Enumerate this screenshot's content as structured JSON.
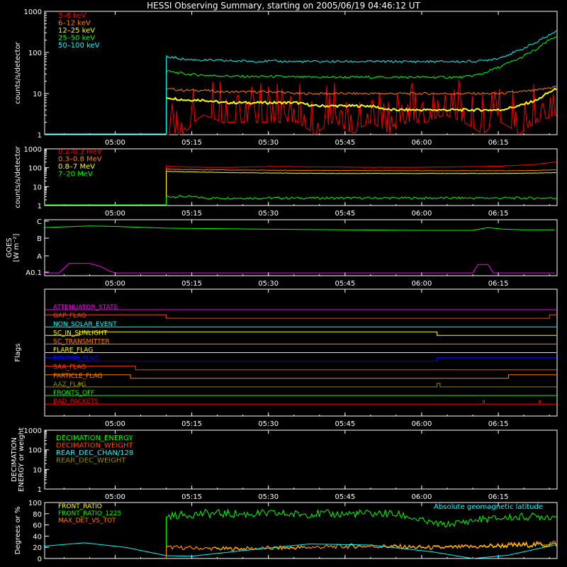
{
  "title": "HESSI Observing Summary, starting on 2005/06/19 04:46:12 UT",
  "time_ticks": [
    "05:00",
    "05:15",
    "05:30",
    "05:45",
    "06:00",
    "06:15"
  ],
  "colors": {
    "red": "#ff0000",
    "orange": "#ff7f00",
    "yellow": "#ffff00",
    "green": "#00ff00",
    "cyan": "#00ffff",
    "magenta": "#ff00ff",
    "blue": "#0000ff",
    "brown": "#8b6914",
    "olive": "#8b8b00",
    "orangered": "#ff4500",
    "tick": "#ffffff"
  },
  "chart_data": [
    {
      "type": "line",
      "id": "rates",
      "ylabel": "counts/s/detector",
      "yscale": "log",
      "ylim": [
        1,
        1000
      ],
      "yticks": [
        "1",
        "10",
        "100",
        "1000"
      ],
      "legend_position": "top-left",
      "x_start": "05:10",
      "x_end": "06:26",
      "series": [
        {
          "name": "3–6 keV",
          "color": "#ff0000",
          "values": [
            1,
            1,
            3,
            2,
            2,
            2,
            2,
            2,
            1,
            2,
            1,
            2,
            1,
            2,
            2,
            3,
            2,
            1,
            2,
            1,
            2,
            3
          ]
        },
        {
          "name": "6–12 keV",
          "color": "#ff7f00",
          "values": [
            13,
            12,
            12,
            11,
            11,
            11,
            11,
            10,
            10,
            10,
            10,
            10,
            10,
            10,
            10,
            10,
            10,
            10,
            10,
            11,
            12,
            15
          ]
        },
        {
          "name": "12–25 keV",
          "color": "#ffff00",
          "values": [
            8,
            7,
            7,
            6,
            6,
            6,
            6,
            6,
            5,
            5,
            5,
            5,
            4,
            4,
            4,
            4,
            4,
            4,
            4,
            5,
            7,
            13
          ]
        },
        {
          "name": "25–50 keV",
          "color": "#00ff00",
          "values": [
            35,
            30,
            28,
            27,
            26,
            26,
            26,
            25,
            25,
            25,
            25,
            25,
            25,
            25,
            25,
            25,
            25,
            30,
            45,
            70,
            120,
            250
          ]
        },
        {
          "name": "50–100 keV",
          "color": "#00ffff",
          "values": [
            80,
            68,
            65,
            63,
            62,
            61,
            61,
            60,
            60,
            60,
            60,
            60,
            60,
            60,
            60,
            60,
            60,
            62,
            75,
            110,
            180,
            320
          ]
        }
      ]
    },
    {
      "type": "line",
      "id": "high_energy",
      "ylabel": "counts/s/detector",
      "yscale": "log",
      "ylim": [
        1,
        1000
      ],
      "yticks": [
        "1",
        "10",
        "100",
        "1000"
      ],
      "legend_position": "top-left",
      "x_start": "05:10",
      "x_end": "06:26",
      "series": [
        {
          "name": "0.1–0.3 MeV",
          "color": "#ff0000",
          "values": [
            120,
            110,
            105,
            105,
            110,
            115,
            115,
            110,
            110,
            108,
            105,
            105,
            105,
            108,
            110,
            115,
            120,
            130,
            150,
            200
          ]
        },
        {
          "name": "0.3–0.8 MeV",
          "color": "#ff7f00",
          "values": [
            85,
            80,
            78,
            76,
            75,
            74,
            73,
            72,
            72,
            72,
            71,
            70,
            70,
            70,
            70,
            70,
            70,
            70,
            72,
            78
          ]
        },
        {
          "name": "0.8–7 MeV",
          "color": "#ffff00",
          "values": [
            65,
            60,
            58,
            55,
            54,
            53,
            52,
            51,
            50,
            50,
            50,
            50,
            50,
            50,
            50,
            50,
            50,
            51,
            52,
            55
          ]
        },
        {
          "name": "7–20 MeV",
          "color": "#00ff00",
          "values": [
            3,
            3,
            2.5,
            2.5,
            2.5,
            2.5,
            2.5,
            2.5,
            2.5,
            2.5,
            2.5,
            2.5,
            2.5,
            2.5,
            2.5,
            2.5,
            2.5,
            2.5,
            2.5,
            2.5
          ]
        }
      ]
    },
    {
      "type": "line",
      "id": "goes",
      "ylabel": "GOES",
      "ylabel_unit": "[W m⁻²]",
      "yticks": [
        "A0.1",
        "A",
        "B",
        "C"
      ],
      "series": [
        {
          "color": "#00ff00",
          "x": [
            "04:46",
            "04:55",
            "05:00",
            "05:10",
            "05:20",
            "05:30",
            "05:45",
            "06:00",
            "06:10",
            "06:13",
            "06:16",
            "06:20",
            "06:26"
          ],
          "values": [
            0.86,
            0.89,
            0.88,
            0.85,
            0.84,
            0.83,
            0.82,
            0.81,
            0.81,
            0.86,
            0.83,
            0.82,
            0.82
          ]
        },
        {
          "color": "#ff00ff",
          "x": [
            "04:46",
            "04:49",
            "04:51",
            "04:55",
            "04:57",
            "04:59",
            "05:00",
            "06:10",
            "06:11",
            "06:13",
            "06:14",
            "06:26"
          ],
          "values": [
            0.05,
            0.05,
            0.22,
            0.22,
            0.17,
            0.08,
            0.05,
            0.05,
            0.2,
            0.2,
            0.05,
            0.05
          ]
        }
      ]
    },
    {
      "type": "line",
      "id": "flags",
      "ylabel": "Flags",
      "series": [
        {
          "name": "ATTENUATOR_STATE",
          "color": "#ff00ff",
          "steps": [
            [
              "04:46",
              0
            ]
          ]
        },
        {
          "name": "GAP_FLAG",
          "color": "#ff4500",
          "steps": [
            [
              "04:46",
              1
            ],
            [
              "05:10",
              0
            ],
            [
              "06:25",
              1
            ]
          ]
        },
        {
          "name": "NON_SOLAR_EVENT",
          "color": "#00ffff",
          "steps": [
            [
              "04:46",
              0
            ]
          ]
        },
        {
          "name": "SC_IN_SUNLIGHT",
          "color": "#ffff00",
          "steps": [
            [
              "04:46",
              0
            ],
            [
              "04:53",
              1
            ],
            [
              "06:03",
              0
            ]
          ]
        },
        {
          "name": "SC_TRANSMITTER",
          "color": "#ff7f00",
          "steps": [
            [
              "04:46",
              0
            ]
          ]
        },
        {
          "name": "FLARE_FLAG",
          "color": "#ffff00",
          "steps": [
            [
              "04:46",
              0
            ]
          ]
        },
        {
          "name": "ECLIPSE_FLAG",
          "color": "#0000ff",
          "steps": [
            [
              "04:46",
              1
            ],
            [
              "04:53",
              0
            ],
            [
              "06:03",
              1
            ]
          ]
        },
        {
          "name": "SAA_FLAG",
          "color": "#ff4500",
          "steps": [
            [
              "04:46",
              1
            ],
            [
              "05:04",
              0
            ]
          ]
        },
        {
          "name": "PARTICLE_FLAG",
          "color": "#ff7f00",
          "steps": [
            [
              "04:46",
              1
            ],
            [
              "05:03",
              0
            ],
            [
              "06:17",
              1
            ]
          ]
        },
        {
          "name": "AAZ_FLAG",
          "color": "#8b8b00",
          "steps": [
            [
              "04:46",
              0
            ],
            [
              "04:53",
              1
            ],
            [
              "04:53.6",
              0
            ],
            [
              "06:03",
              1
            ],
            [
              "06:03.6",
              0
            ]
          ]
        },
        {
          "name": "FRONTS_OFF",
          "color": "#00ff00",
          "steps": [
            [
              "04:46",
              0
            ]
          ]
        },
        {
          "name": "BAD_PACKETS",
          "color": "#ff0000",
          "steps": [
            [
              "04:46",
              0
            ],
            [
              "06:12",
              1
            ],
            [
              "06:12.3",
              0
            ],
            [
              "06:23",
              1
            ],
            [
              "06:23.3",
              0
            ]
          ]
        }
      ]
    },
    {
      "type": "line",
      "id": "decimation",
      "ylabel": "DECIMATION\nENERGY or weight",
      "yscale": "log",
      "ylim": [
        1,
        1000
      ],
      "yticks": [
        "1",
        "10",
        "100",
        "1000"
      ],
      "series": [
        {
          "name": "DECIMATION_ENERGY",
          "color": "#00ff00",
          "values": []
        },
        {
          "name": "DECIMATION_WEIGHT",
          "color": "#ff4500",
          "values": []
        },
        {
          "name": "REAR_DEC_CHAN/128",
          "color": "#00ffff",
          "values": []
        },
        {
          "name": "REAR_DEC_WEIGHT",
          "color": "#8b8b00",
          "values": []
        }
      ]
    },
    {
      "type": "line",
      "id": "ratios",
      "ylabel": "Degrees or %",
      "ylim": [
        0,
        100
      ],
      "yticks": [
        "0",
        "20",
        "40",
        "60",
        "80",
        "100"
      ],
      "annotation": "Absolute geomagnetic latitude",
      "series": [
        {
          "name": "FRONT_RATIO",
          "color": "#ffff00",
          "x_start": "05:10",
          "values": [
            20,
            19,
            18,
            17,
            17,
            18,
            18,
            19,
            20,
            21,
            22,
            22,
            21,
            20,
            19,
            19,
            20,
            21,
            22,
            23,
            24,
            25
          ]
        },
        {
          "name": "FRONT_RATIO_1225",
          "color": "#00ff00",
          "x_start": "05:10",
          "values": [
            75,
            78,
            80,
            80,
            79,
            80,
            80,
            79,
            80,
            79,
            80,
            80,
            80,
            75,
            65,
            60,
            65,
            70,
            72,
            74,
            75,
            75
          ]
        },
        {
          "name": "MAX_DET_VS_TOT",
          "color": "#ff7f00",
          "x_start": "05:10",
          "values": [
            20,
            19,
            18,
            18,
            18,
            18,
            19,
            20,
            20,
            21,
            21,
            22,
            22,
            21,
            20,
            20,
            21,
            22,
            24,
            25,
            26,
            28
          ]
        },
        {
          "name": "Absolute geomagnetic latitude",
          "color": "#00ffff",
          "x": [
            "04:46",
            "04:54",
            "05:02",
            "05:10",
            "05:15",
            "05:25",
            "05:38",
            "05:50",
            "06:02",
            "06:10",
            "06:17",
            "06:26"
          ],
          "values": [
            22,
            28,
            20,
            5,
            4,
            14,
            26,
            24,
            12,
            0,
            6,
            24
          ]
        }
      ]
    }
  ]
}
